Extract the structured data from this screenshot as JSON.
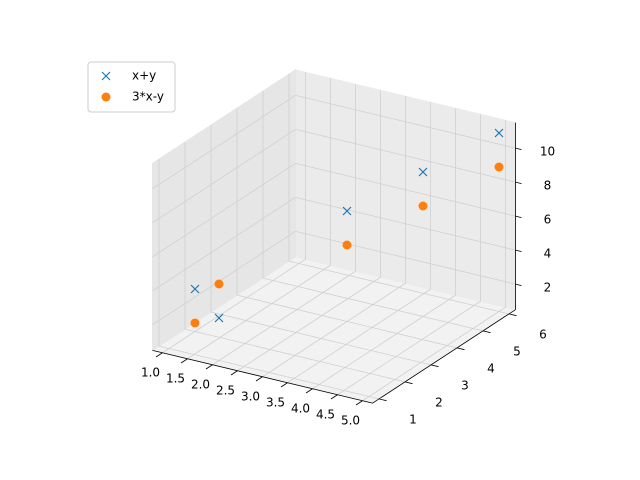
{
  "chart_data": {
    "type": "scatter3d",
    "x": [
      1,
      2,
      3,
      4,
      5
    ],
    "y": [
      2,
      1,
      4,
      5,
      6
    ],
    "series": [
      {
        "name": "x+y",
        "color": "#1f77b4",
        "marker": "x",
        "values": [
          3,
          3,
          7,
          9,
          11
        ]
      },
      {
        "name": "3*x-y",
        "color": "#ff7f0e",
        "marker": "o",
        "values": [
          1,
          5,
          5,
          7,
          9
        ]
      }
    ],
    "xlim": [
      0.8,
      5.2
    ],
    "ylim": [
      0.75,
      6.25
    ],
    "zlim": [
      0.5,
      11.5
    ],
    "xticks": [
      {
        "value": 1,
        "label": "1.0"
      },
      {
        "value": 1.5,
        "label": "1.5"
      },
      {
        "value": 2,
        "label": "2.0"
      },
      {
        "value": 2.5,
        "label": "2.5"
      },
      {
        "value": 3,
        "label": "3.0"
      },
      {
        "value": 3.5,
        "label": "3.5"
      },
      {
        "value": 4,
        "label": "4.0"
      },
      {
        "value": 4.5,
        "label": "4.5"
      },
      {
        "value": 5,
        "label": "5.0"
      }
    ],
    "yticks": [
      1,
      2,
      3,
      4,
      5,
      6
    ],
    "zticks": [
      2,
      4,
      6,
      8,
      10
    ],
    "grid": true,
    "legend": "upper left"
  }
}
